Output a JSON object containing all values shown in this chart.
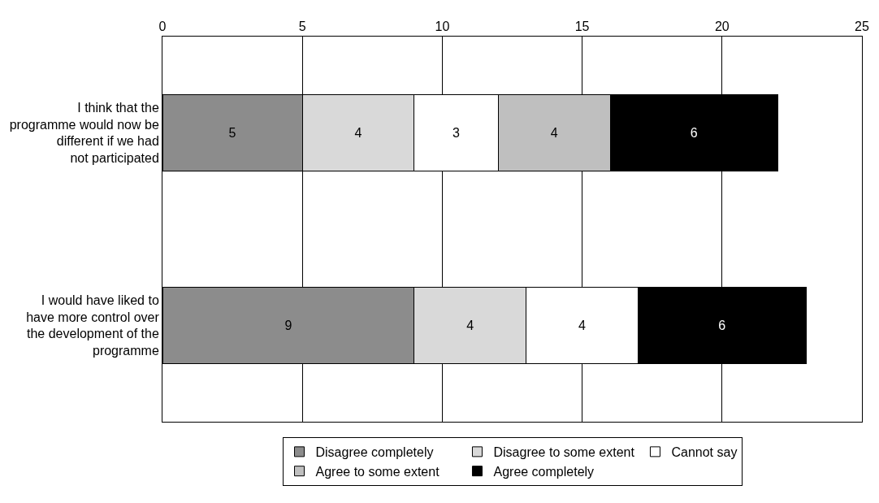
{
  "chart_data": {
    "type": "bar",
    "orientation": "horizontal",
    "stacked": true,
    "data_labels": true,
    "categories": [
      "I think that the programme would now be different if we had not participated",
      "I would have liked to have more control over the development of the programme"
    ],
    "series": [
      {
        "name": "Disagree completely",
        "color": "#8c8c8c",
        "values": [
          5,
          9
        ]
      },
      {
        "name": "Disagree to some extent",
        "color": "#d9d9d9",
        "values": [
          4,
          4
        ]
      },
      {
        "name": "Cannot say",
        "color": "#ffffff",
        "values": [
          3,
          4
        ]
      },
      {
        "name": "Agree to some extent",
        "color": "#bfbfbf",
        "values": [
          4,
          null
        ]
      },
      {
        "name": "Agree completely",
        "color": "#000000",
        "values": [
          6,
          6
        ]
      }
    ],
    "xlim": [
      0,
      25
    ],
    "xticks": [
      0,
      5,
      10,
      15,
      20,
      25
    ],
    "grid": "x",
    "legend": "bottom"
  }
}
